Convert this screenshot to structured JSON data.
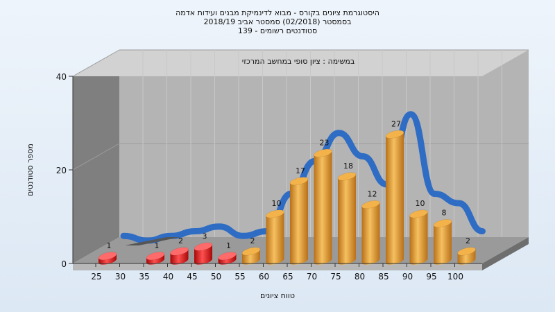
{
  "chart_data": {
    "type": "bar",
    "title_lines": [
      "היסטוגרמת ציונים בקורס - מבוא לדינמיקת מבנים ועידות אדמה",
      "בסמסטר  (02/2018)  סמסטר אביב 2018/19",
      "סטודנטים רשומים - 139"
    ],
    "annotation": "במשימה : ציון סופי במחשב המרכזי",
    "xlabel": "טווח ציונים",
    "ylabel": "מספר סטודנטים",
    "categories": [
      "25",
      "30",
      "35",
      "40",
      "45",
      "50",
      "55",
      "60",
      "65",
      "70",
      "75",
      "80",
      "85",
      "90",
      "95",
      "100"
    ],
    "values": [
      1,
      0,
      1,
      2,
      3,
      1,
      2,
      10,
      17,
      23,
      18,
      12,
      27,
      10,
      8,
      2
    ],
    "bar_colors": [
      "#e01818",
      "#e01818",
      "#e01818",
      "#e01818",
      "#e01818",
      "#e01818",
      "#e8a030",
      "#e8a030",
      "#e8a030",
      "#e8a030",
      "#e8a030",
      "#e8a030",
      "#e8a030",
      "#e8a030",
      "#e8a030",
      "#e8a030"
    ],
    "y_ticks": [
      0,
      20,
      40
    ],
    "ylim": [
      0,
      40
    ],
    "trend_color": "#2f6cc4",
    "wall_color": "#b4b4b4",
    "side_wall_color": "#7f7f7f",
    "grid": true
  }
}
